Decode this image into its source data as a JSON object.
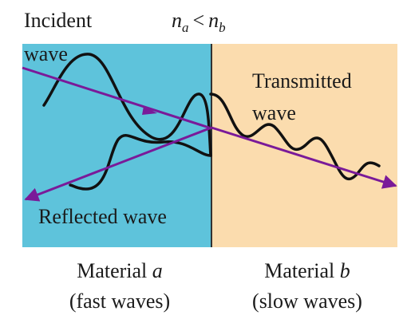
{
  "labels": {
    "incident": {
      "line1": "Incident",
      "line2": "wave"
    },
    "relation": {
      "left": "n",
      "left_sub": "a",
      "op": "<",
      "right": "n",
      "right_sub": "b"
    },
    "transmitted": {
      "line1": "Transmitted",
      "line2": "wave"
    },
    "reflected": "Reflected wave",
    "material_a": {
      "text": "Material",
      "symbol": "a",
      "note": "(fast waves)"
    },
    "material_b": {
      "text": "Material",
      "symbol": "b",
      "note": "(slow waves)"
    }
  }
}
